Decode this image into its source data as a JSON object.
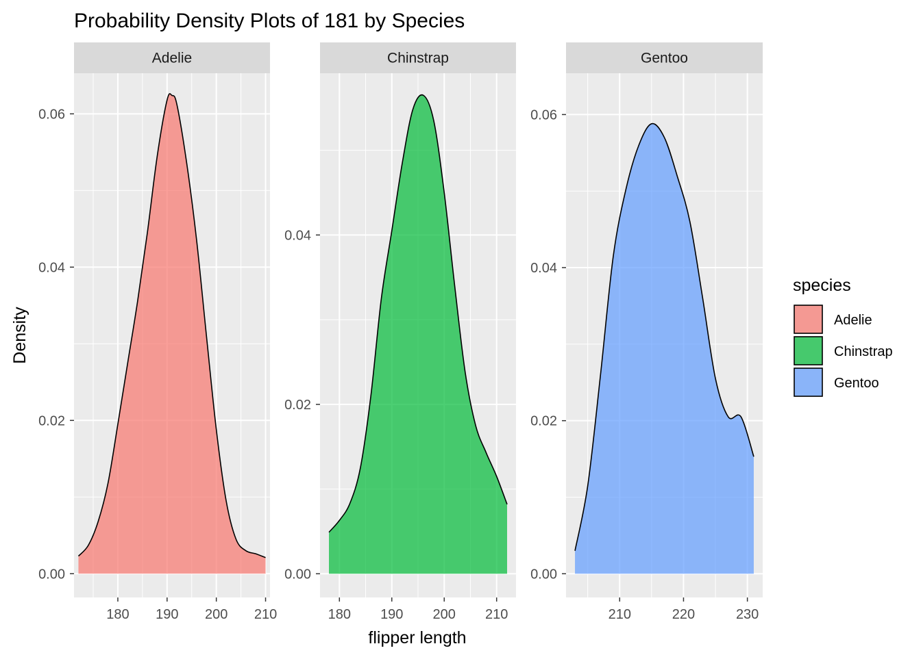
{
  "chart_data": {
    "type": "area",
    "title": "Probability Density Plots of 181 by Species",
    "xlabel": "flipper length",
    "ylabel": "Density",
    "grid": true,
    "legend": {
      "title": "species",
      "position": "right",
      "entries": [
        {
          "label": "Adelie",
          "color": "#F8766D"
        },
        {
          "label": "Chinstrap",
          "color": "#00BA38"
        },
        {
          "label": "Gentoo",
          "color": "#619CFF"
        }
      ]
    },
    "panels": [
      {
        "name": "Adelie",
        "color": "#F8766D",
        "xlim": [
          171.1,
          210.9
        ],
        "ylim": [
          -0.0031,
          0.0653
        ],
        "x_ticks": [
          180,
          190,
          200,
          210
        ],
        "x_tick_labels": [
          "180",
          "190",
          "200",
          "210"
        ],
        "y_ticks": [
          0,
          0.02,
          0.04,
          0.06
        ],
        "y_tick_labels": [
          "0.00",
          "0.02",
          "0.04",
          "0.06"
        ],
        "x": [
          172,
          174,
          176,
          178,
          180,
          182,
          184,
          186,
          188,
          190,
          191,
          192,
          194,
          196,
          198,
          200,
          202,
          204,
          206,
          208,
          210
        ],
        "y": [
          0.0023,
          0.0037,
          0.0068,
          0.0118,
          0.0195,
          0.0275,
          0.0355,
          0.0445,
          0.0545,
          0.0618,
          0.0624,
          0.0612,
          0.0535,
          0.0435,
          0.031,
          0.0188,
          0.0095,
          0.0045,
          0.003,
          0.0026,
          0.0021
        ]
      },
      {
        "name": "Chinstrap",
        "color": "#00BA38",
        "xlim": [
          176.3,
          213.7
        ],
        "ylim": [
          -0.0028,
          0.0591
        ],
        "x_ticks": [
          180,
          190,
          200,
          210
        ],
        "x_tick_labels": [
          "180",
          "190",
          "200",
          "210"
        ],
        "y_ticks": [
          0,
          0.02,
          0.04
        ],
        "y_tick_labels": [
          "0.00",
          "0.02",
          "0.04"
        ],
        "x": [
          178,
          180,
          182,
          184,
          186,
          188,
          190,
          192,
          194,
          196,
          198,
          200,
          202,
          204,
          206,
          208,
          210,
          212
        ],
        "y": [
          0.0049,
          0.0063,
          0.0083,
          0.0125,
          0.021,
          0.0325,
          0.0405,
          0.0485,
          0.0548,
          0.0565,
          0.0535,
          0.045,
          0.034,
          0.0238,
          0.0175,
          0.0143,
          0.0115,
          0.0082
        ]
      },
      {
        "name": "Gentoo",
        "color": "#619CFF",
        "xlim": [
          201.6,
          232.4
        ],
        "ylim": [
          -0.0031,
          0.0654
        ],
        "x_ticks": [
          210,
          220,
          230
        ],
        "x_tick_labels": [
          "210",
          "220",
          "230"
        ],
        "y_ticks": [
          0,
          0.02,
          0.04,
          0.06
        ],
        "y_tick_labels": [
          "0.00",
          "0.02",
          "0.04",
          "0.06"
        ],
        "x": [
          203,
          205,
          207,
          209,
          211,
          213,
          215,
          217,
          219,
          221,
          223,
          225,
          227,
          229,
          231
        ],
        "y": [
          0.003,
          0.0115,
          0.026,
          0.0415,
          0.0503,
          0.056,
          0.0588,
          0.057,
          0.052,
          0.046,
          0.036,
          0.0255,
          0.0205,
          0.0205,
          0.0153
        ]
      }
    ]
  }
}
